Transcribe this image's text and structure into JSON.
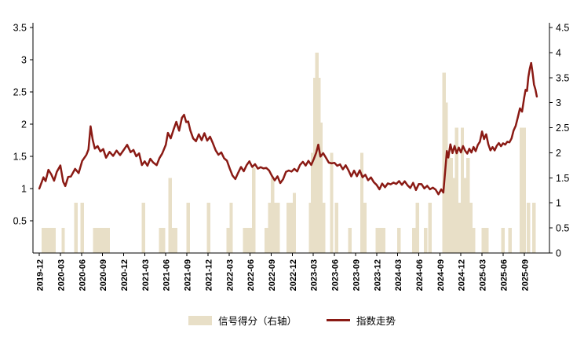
{
  "page": {
    "background": "#ffffff"
  },
  "colors": {
    "bar": "#e8dfc7",
    "line": "#8a1a14",
    "axis": "#000000",
    "text": "#000000"
  },
  "legend": {
    "items": [
      {
        "label": "信号得分（右轴）",
        "type": "bar",
        "color": "#e8dfc7"
      },
      {
        "label": "指数走势",
        "type": "line",
        "color": "#8a1a14"
      }
    ]
  },
  "chart_data": {
    "type": "bar",
    "subtype": "bar+line dual-axis",
    "title": "",
    "xlabel": "",
    "ylabel": "",
    "grid": false,
    "legend_position": "bottom-center",
    "left_axis": {
      "min": 0,
      "max": 3.5,
      "tick_values": [
        3.5,
        3,
        2.5,
        2,
        1.5,
        1,
        0.5
      ],
      "tick_labels": [
        "3.5",
        "3",
        "2.5",
        "2",
        "1.5",
        "1",
        "0.5"
      ]
    },
    "right_axis": {
      "min": 0,
      "max": 4.5,
      "tick_values": [
        4.5,
        4,
        3.5,
        3,
        2.5,
        2,
        1.5,
        1,
        0.5,
        0
      ],
      "tick_labels": [
        "4.5",
        "4",
        "3.5",
        "3",
        "2.5",
        "2",
        "1.5",
        "1",
        "0.5",
        "0"
      ]
    },
    "x_axis": {
      "unit": "months since 2019-12",
      "domain_months": [
        -0.9,
        72.6
      ],
      "tick_month_offsets": [
        0,
        3,
        6,
        9,
        12,
        15,
        18,
        21,
        24,
        27,
        30,
        33,
        36,
        39,
        42,
        45,
        48,
        51,
        54,
        57,
        60,
        63,
        66,
        69
      ],
      "tick_labels": [
        "2019-12",
        "2020-03",
        "2020-06",
        "2020-09",
        "2020-12",
        "2021-03",
        "2021-06",
        "2021-09",
        "2021-12",
        "2022-03",
        "2022-06",
        "2022-09",
        "2022-12",
        "2023-03",
        "2023-06",
        "2023-09",
        "2023-12",
        "2024-03",
        "2024-06",
        "2024-09",
        "2024-12",
        "2025-03",
        "2025-06",
        "2025-09"
      ]
    },
    "series": [
      {
        "name": "信号得分（右轴）",
        "type": "bar",
        "axis": "right",
        "color": "#e8dfc7",
        "points": [
          [
            0.6,
            0.5
          ],
          [
            1.0,
            0.5
          ],
          [
            1.35,
            0.5
          ],
          [
            1.7,
            0.5
          ],
          [
            2.1,
            0.5
          ],
          [
            3.4,
            0.5
          ],
          [
            5.2,
            1.0
          ],
          [
            6.1,
            1.0
          ],
          [
            7.9,
            0.5
          ],
          [
            8.25,
            0.5
          ],
          [
            8.6,
            0.5
          ],
          [
            9.0,
            0.5
          ],
          [
            9.4,
            0.5
          ],
          [
            9.8,
            0.5
          ],
          [
            14.8,
            1.0
          ],
          [
            17.3,
            0.5
          ],
          [
            17.7,
            0.5
          ],
          [
            18.6,
            1.5
          ],
          [
            19.0,
            0.5
          ],
          [
            19.4,
            0.5
          ],
          [
            21.2,
            1.0
          ],
          [
            24.1,
            1.0
          ],
          [
            26.9,
            0.5
          ],
          [
            27.3,
            1.0
          ],
          [
            29.2,
            0.5
          ],
          [
            29.6,
            0.5
          ],
          [
            30.0,
            0.5
          ],
          [
            30.5,
            1.7
          ],
          [
            32.3,
            0.5
          ],
          [
            32.8,
            1.0
          ],
          [
            33.2,
            1.5
          ],
          [
            33.6,
            1.0
          ],
          [
            34.0,
            1.0
          ],
          [
            35.4,
            1.0
          ],
          [
            35.8,
            1.0
          ],
          [
            36.3,
            1.2
          ],
          [
            38.6,
            1.0
          ],
          [
            38.9,
            2.0
          ],
          [
            39.2,
            3.5
          ],
          [
            39.5,
            4.0
          ],
          [
            39.8,
            3.5
          ],
          [
            40.1,
            2.6
          ],
          [
            40.45,
            1.0
          ],
          [
            41.6,
            2.0
          ],
          [
            42.3,
            1.0
          ],
          [
            44.2,
            0.5
          ],
          [
            45.9,
            2.0
          ],
          [
            46.3,
            1.0
          ],
          [
            48.1,
            0.5
          ],
          [
            48.5,
            0.5
          ],
          [
            49.0,
            0.5
          ],
          [
            51.2,
            0.5
          ],
          [
            53.3,
            0.5
          ],
          [
            53.8,
            1.0
          ],
          [
            55.0,
            0.5
          ],
          [
            55.6,
            1.0
          ],
          [
            57.6,
            3.6
          ],
          [
            57.9,
            3.0
          ],
          [
            58.2,
            2.0
          ],
          [
            58.6,
            1.9
          ],
          [
            59.0,
            1.5
          ],
          [
            59.4,
            2.5
          ],
          [
            59.8,
            1.0
          ],
          [
            60.2,
            2.5
          ],
          [
            60.6,
            1.5
          ],
          [
            61.0,
            1.9
          ],
          [
            61.4,
            1.0
          ],
          [
            61.8,
            0.5
          ],
          [
            63.2,
            0.5
          ],
          [
            63.7,
            0.5
          ],
          [
            66.0,
            0.5
          ],
          [
            67.0,
            0.5
          ],
          [
            68.6,
            2.5
          ],
          [
            69.0,
            2.5
          ],
          [
            69.6,
            1.0
          ],
          [
            70.4,
            1.0
          ]
        ]
      },
      {
        "name": "指数走势",
        "type": "line",
        "axis": "left",
        "color": "#8a1a14",
        "points": [
          [
            0.0,
            1.0
          ],
          [
            0.6,
            1.17
          ],
          [
            0.9,
            1.1
          ],
          [
            1.3,
            1.3
          ],
          [
            1.7,
            1.22
          ],
          [
            2.1,
            1.12
          ],
          [
            2.5,
            1.26
          ],
          [
            3.0,
            1.36
          ],
          [
            3.4,
            1.1
          ],
          [
            3.7,
            1.06
          ],
          [
            4.1,
            1.16
          ],
          [
            4.5,
            1.2
          ],
          [
            5.1,
            1.32
          ],
          [
            5.6,
            1.26
          ],
          [
            6.1,
            1.43
          ],
          [
            6.7,
            1.52
          ],
          [
            7.0,
            1.62
          ],
          [
            7.3,
            1.95
          ],
          [
            7.6,
            1.76
          ],
          [
            7.9,
            1.6
          ],
          [
            8.3,
            1.68
          ],
          [
            8.7,
            1.56
          ],
          [
            9.1,
            1.62
          ],
          [
            9.5,
            1.48
          ],
          [
            10.0,
            1.56
          ],
          [
            10.5,
            1.5
          ],
          [
            11.0,
            1.6
          ],
          [
            11.5,
            1.54
          ],
          [
            12.0,
            1.6
          ],
          [
            12.5,
            1.66
          ],
          [
            13.0,
            1.55
          ],
          [
            13.4,
            1.62
          ],
          [
            13.8,
            1.48
          ],
          [
            14.2,
            1.56
          ],
          [
            14.6,
            1.36
          ],
          [
            15.0,
            1.42
          ],
          [
            15.4,
            1.36
          ],
          [
            15.8,
            1.46
          ],
          [
            16.2,
            1.4
          ],
          [
            16.7,
            1.38
          ],
          [
            17.1,
            1.46
          ],
          [
            17.5,
            1.55
          ],
          [
            18.0,
            1.7
          ],
          [
            18.3,
            1.86
          ],
          [
            18.7,
            1.78
          ],
          [
            19.1,
            1.92
          ],
          [
            19.5,
            2.02
          ],
          [
            19.9,
            1.92
          ],
          [
            20.3,
            2.08
          ],
          [
            20.6,
            2.15
          ],
          [
            20.9,
            2.02
          ],
          [
            21.2,
            2.06
          ],
          [
            21.5,
            1.9
          ],
          [
            21.9,
            1.78
          ],
          [
            22.3,
            1.74
          ],
          [
            22.7,
            1.83
          ],
          [
            23.1,
            1.77
          ],
          [
            23.5,
            1.84
          ],
          [
            23.9,
            1.76
          ],
          [
            24.3,
            1.8
          ],
          [
            24.7,
            1.7
          ],
          [
            25.1,
            1.6
          ],
          [
            25.5,
            1.52
          ],
          [
            25.9,
            1.56
          ],
          [
            26.3,
            1.48
          ],
          [
            26.7,
            1.42
          ],
          [
            27.1,
            1.32
          ],
          [
            27.5,
            1.2
          ],
          [
            27.9,
            1.14
          ],
          [
            28.3,
            1.26
          ],
          [
            28.7,
            1.32
          ],
          [
            29.1,
            1.28
          ],
          [
            29.5,
            1.36
          ],
          [
            29.9,
            1.42
          ],
          [
            30.3,
            1.34
          ],
          [
            30.7,
            1.38
          ],
          [
            31.1,
            1.3
          ],
          [
            31.5,
            1.35
          ],
          [
            31.9,
            1.29
          ],
          [
            32.3,
            1.34
          ],
          [
            32.7,
            1.27
          ],
          [
            33.1,
            1.2
          ],
          [
            33.5,
            1.13
          ],
          [
            33.9,
            1.19
          ],
          [
            34.3,
            1.08
          ],
          [
            34.7,
            1.16
          ],
          [
            35.1,
            1.24
          ],
          [
            35.5,
            1.3
          ],
          [
            35.9,
            1.25
          ],
          [
            36.3,
            1.31
          ],
          [
            36.7,
            1.27
          ],
          [
            37.1,
            1.36
          ],
          [
            37.5,
            1.42
          ],
          [
            37.9,
            1.36
          ],
          [
            38.3,
            1.42
          ],
          [
            38.7,
            1.38
          ],
          [
            39.1,
            1.46
          ],
          [
            39.4,
            1.56
          ],
          [
            39.7,
            1.66
          ],
          [
            40.0,
            1.5
          ],
          [
            40.4,
            1.55
          ],
          [
            40.8,
            1.47
          ],
          [
            41.2,
            1.42
          ],
          [
            41.6,
            1.37
          ],
          [
            42.0,
            1.42
          ],
          [
            42.4,
            1.34
          ],
          [
            42.8,
            1.38
          ],
          [
            43.2,
            1.3
          ],
          [
            43.6,
            1.36
          ],
          [
            44.0,
            1.28
          ],
          [
            44.4,
            1.2
          ],
          [
            44.8,
            1.26
          ],
          [
            45.2,
            1.21
          ],
          [
            45.6,
            1.27
          ],
          [
            46.0,
            1.18
          ],
          [
            46.4,
            1.22
          ],
          [
            46.8,
            1.12
          ],
          [
            47.2,
            1.18
          ],
          [
            47.6,
            1.1
          ],
          [
            48.0,
            1.05
          ],
          [
            48.4,
            1.0
          ],
          [
            48.8,
            1.07
          ],
          [
            49.2,
            1.02
          ],
          [
            49.6,
            1.09
          ],
          [
            50.0,
            1.05
          ],
          [
            50.4,
            1.11
          ],
          [
            50.8,
            1.06
          ],
          [
            51.2,
            1.12
          ],
          [
            51.6,
            1.06
          ],
          [
            52.0,
            1.11
          ],
          [
            52.4,
            1.05
          ],
          [
            52.8,
            1.02
          ],
          [
            53.2,
            1.07
          ],
          [
            53.6,
            1.0
          ],
          [
            54.0,
            1.05
          ],
          [
            54.4,
            1.08
          ],
          [
            54.8,
            1.0
          ],
          [
            55.2,
            1.04
          ],
          [
            55.6,
            0.99
          ],
          [
            56.0,
            1.02
          ],
          [
            56.4,
            0.97
          ],
          [
            56.8,
            0.93
          ],
          [
            57.2,
            0.97
          ],
          [
            57.5,
            0.94
          ],
          [
            57.8,
            1.3
          ],
          [
            58.0,
            1.58
          ],
          [
            58.2,
            1.5
          ],
          [
            58.5,
            1.68
          ],
          [
            58.8,
            1.56
          ],
          [
            59.1,
            1.64
          ],
          [
            59.4,
            1.55
          ],
          [
            59.7,
            1.62
          ],
          [
            60.0,
            1.57
          ],
          [
            60.3,
            1.66
          ],
          [
            60.6,
            1.6
          ],
          [
            60.9,
            1.55
          ],
          [
            61.2,
            1.62
          ],
          [
            61.5,
            1.56
          ],
          [
            61.8,
            1.63
          ],
          [
            62.1,
            1.58
          ],
          [
            62.4,
            1.66
          ],
          [
            62.7,
            1.74
          ],
          [
            63.0,
            1.88
          ],
          [
            63.3,
            1.79
          ],
          [
            63.6,
            1.84
          ],
          [
            63.9,
            1.7
          ],
          [
            64.2,
            1.58
          ],
          [
            64.5,
            1.64
          ],
          [
            64.8,
            1.58
          ],
          [
            65.1,
            1.66
          ],
          [
            65.4,
            1.71
          ],
          [
            65.7,
            1.66
          ],
          [
            66.0,
            1.72
          ],
          [
            66.3,
            1.68
          ],
          [
            66.6,
            1.74
          ],
          [
            66.9,
            1.7
          ],
          [
            67.2,
            1.78
          ],
          [
            67.5,
            1.88
          ],
          [
            67.8,
            1.98
          ],
          [
            68.1,
            2.1
          ],
          [
            68.4,
            2.26
          ],
          [
            68.7,
            2.2
          ],
          [
            69.0,
            2.42
          ],
          [
            69.2,
            2.55
          ],
          [
            69.4,
            2.5
          ],
          [
            69.6,
            2.72
          ],
          [
            69.8,
            2.88
          ],
          [
            70.0,
            2.95
          ],
          [
            70.2,
            2.78
          ],
          [
            70.4,
            2.62
          ],
          [
            70.6,
            2.55
          ],
          [
            70.8,
            2.42
          ]
        ]
      }
    ]
  }
}
